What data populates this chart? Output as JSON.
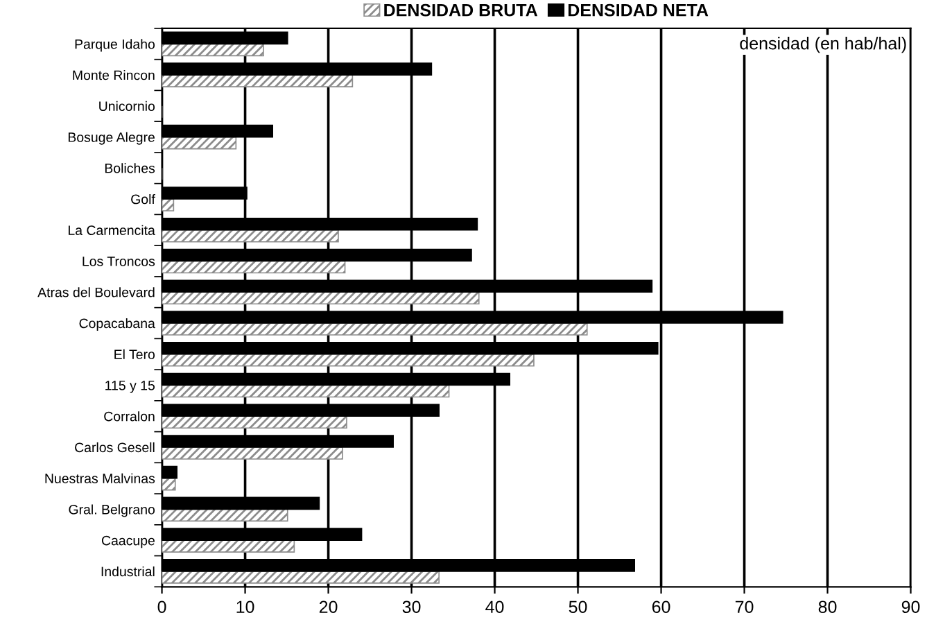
{
  "chart_data": {
    "type": "bar",
    "orientation": "horizontal",
    "categories": [
      "Parque Idaho",
      "Monte Rincon",
      "Unicornio",
      "Bosuge Alegre",
      "Boliches",
      "Golf",
      "La Carmencita",
      "Los Troncos",
      "Atras del Boulevard",
      "Copacabana",
      "El Tero",
      "115 y 15",
      "Corralon",
      "Carlos Gesell",
      "Nuestras Malvinas",
      "Gral. Belgrano",
      "Caacupe",
      "Industrial"
    ],
    "series": [
      {
        "name": "DENSIDAD BRUTA",
        "color": "#8c8c8c",
        "values": [
          12.2,
          22.9,
          0,
          8.9,
          0,
          1.4,
          21.2,
          22.0,
          38.1,
          51.1,
          44.7,
          34.5,
          22.2,
          21.7,
          1.6,
          15.1,
          15.9,
          33.3
        ]
      },
      {
        "name": "DENSIDAD NETA",
        "color": "#000000",
        "values": [
          15.1,
          32.4,
          0,
          13.3,
          0,
          10.2,
          37.9,
          37.2,
          58.9,
          74.6,
          59.6,
          41.8,
          33.3,
          27.8,
          1.8,
          18.9,
          24.0,
          56.8
        ]
      }
    ],
    "xlim": [
      0,
      90
    ],
    "xticks": [
      0,
      10,
      20,
      30,
      40,
      50,
      60,
      70,
      80,
      90
    ],
    "grid": "x",
    "legend": "top",
    "annotations": [
      "densidad (en hab/hal)"
    ]
  }
}
